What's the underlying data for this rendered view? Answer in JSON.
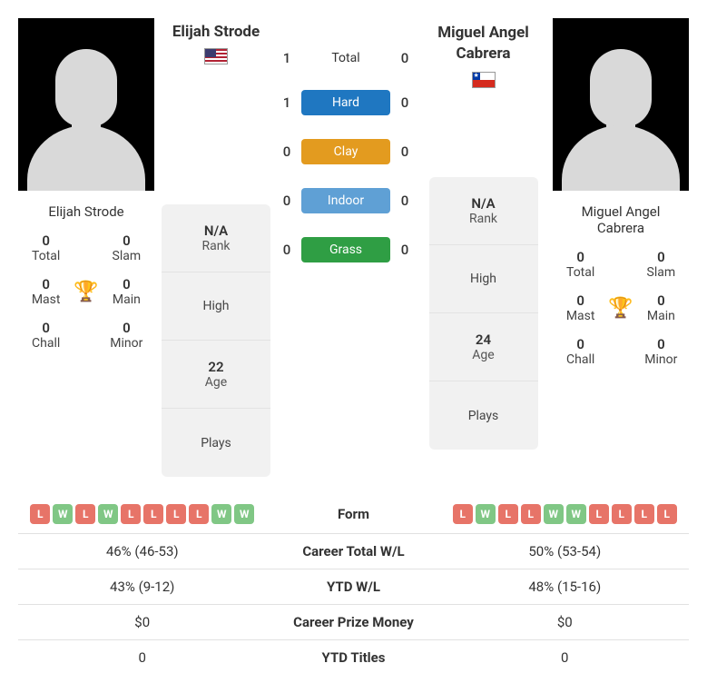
{
  "player1": {
    "name": "Elijah Strode",
    "flag": "us",
    "titles": {
      "total": "0",
      "slam": "0",
      "mast": "0",
      "main": "0",
      "chall": "0",
      "minor": "0"
    },
    "stats": {
      "rank": "N/A",
      "high": "",
      "age": "22",
      "plays": ""
    },
    "form": [
      "L",
      "W",
      "L",
      "W",
      "L",
      "L",
      "L",
      "L",
      "W",
      "W"
    ]
  },
  "player2": {
    "name": "Miguel Angel Cabrera",
    "flag": "cl",
    "titles": {
      "total": "0",
      "slam": "0",
      "mast": "0",
      "main": "0",
      "chall": "0",
      "minor": "0"
    },
    "stats": {
      "rank": "N/A",
      "high": "",
      "age": "24",
      "plays": ""
    },
    "form": [
      "L",
      "W",
      "L",
      "L",
      "W",
      "W",
      "L",
      "L",
      "L",
      "L"
    ]
  },
  "h2h": {
    "total": {
      "label": "Total",
      "p1": "1",
      "p2": "0",
      "color": null
    },
    "hard": {
      "label": "Hard",
      "p1": "1",
      "p2": "0",
      "color": "#1f77c1"
    },
    "clay": {
      "label": "Clay",
      "p1": "0",
      "p2": "0",
      "color": "#e39b1f"
    },
    "indoor": {
      "label": "Indoor",
      "p1": "0",
      "p2": "0",
      "color": "#5fa0d5"
    },
    "grass": {
      "label": "Grass",
      "p1": "0",
      "p2": "0",
      "color": "#2f9e44"
    }
  },
  "labels": {
    "total": "Total",
    "slam": "Slam",
    "mast": "Mast",
    "main": "Main",
    "chall": "Chall",
    "minor": "Minor",
    "rank": "Rank",
    "high": "High",
    "age": "Age",
    "plays": "Plays",
    "form": "Form",
    "career_wl": "Career Total W/L",
    "ytd_wl": "YTD W/L",
    "career_prize": "Career Prize Money",
    "ytd_titles": "YTD Titles"
  },
  "compare": {
    "career_wl": {
      "p1": "46% (46-53)",
      "p2": "50% (53-54)"
    },
    "ytd_wl": {
      "p1": "43% (9-12)",
      "p2": "48% (15-16)"
    },
    "career_prize": {
      "p1": "$0",
      "p2": "$0"
    },
    "ytd_titles": {
      "p1": "0",
      "p2": "0"
    }
  }
}
